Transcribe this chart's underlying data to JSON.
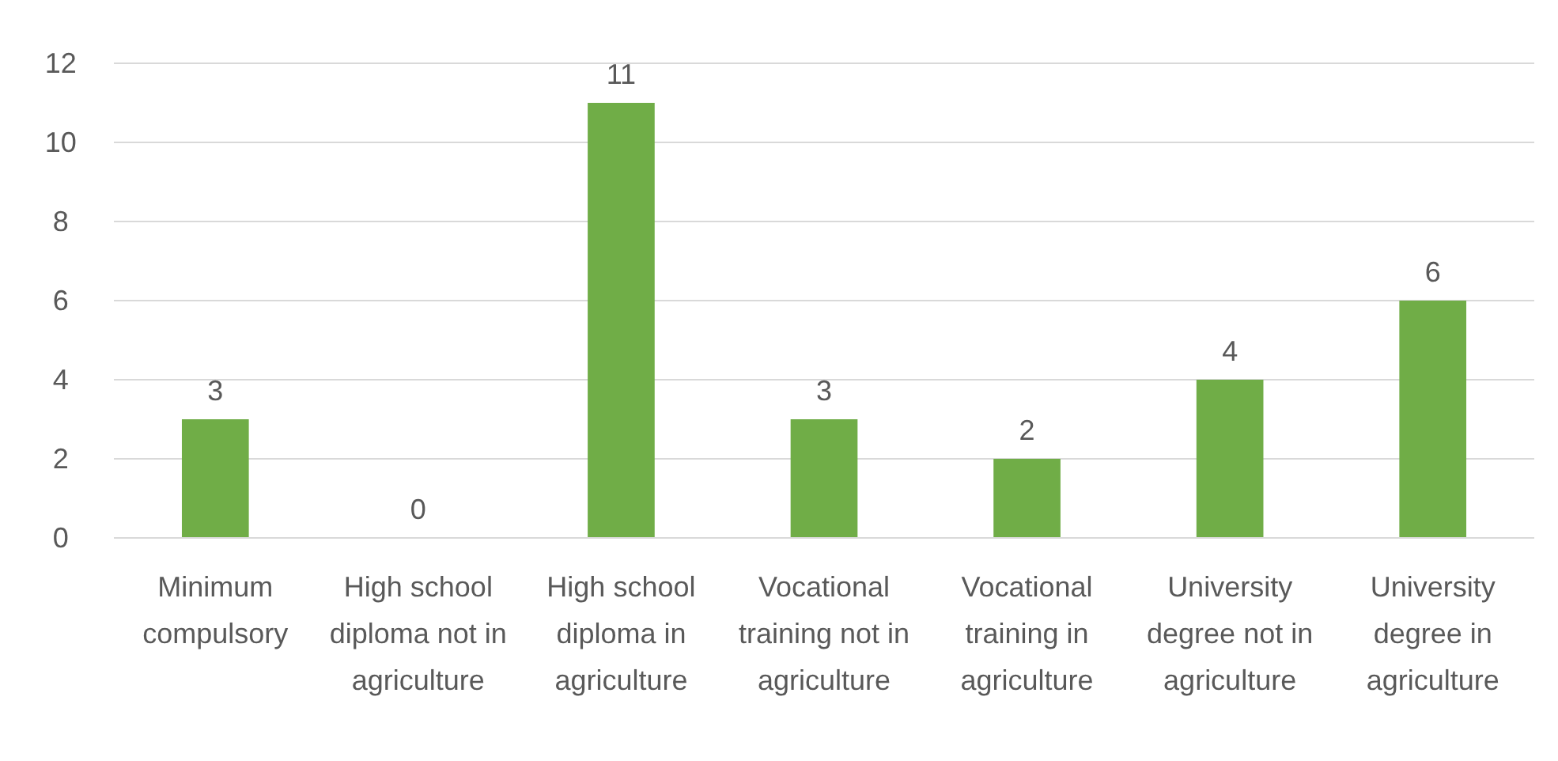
{
  "chart_data": {
    "type": "bar",
    "categories": [
      "Minimum compulsory",
      "High school diploma not in agriculture",
      "High school diploma in agriculture",
      "Vocational training not in agriculture",
      "Vocational training in agriculture",
      "University degree not in agriculture",
      "University degree in agriculture"
    ],
    "values": [
      3,
      0,
      11,
      3,
      2,
      4,
      6
    ],
    "color": "#70ad47",
    "ylim": [
      0,
      12
    ],
    "yticks": [
      0,
      2,
      4,
      6,
      8,
      10,
      12
    ],
    "grid": "y",
    "data_labels": true
  }
}
